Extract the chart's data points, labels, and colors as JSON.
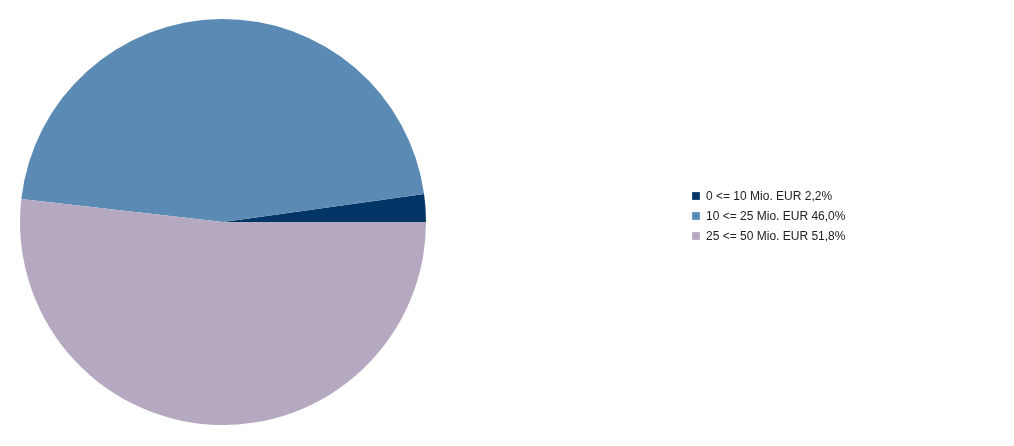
{
  "chart_data": {
    "type": "pie",
    "categories": [
      "0 <= 10 Mio. EUR 2,2%",
      "10 <= 25 Mio. EUR 46,0%",
      "25 <= 50 Mio. EUR 51,8%"
    ],
    "values": [
      2.2,
      46.0,
      51.8
    ],
    "colors": [
      "#003566",
      "#5b8bb4",
      "#b5a9c2"
    ],
    "legend": "right"
  }
}
